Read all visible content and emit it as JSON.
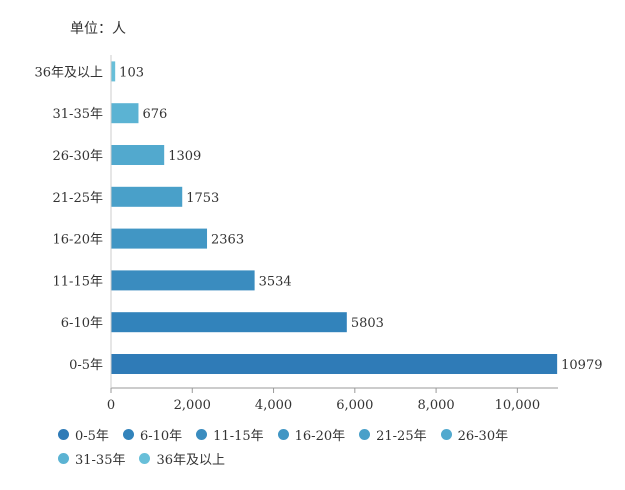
{
  "unit_label": "单位：人",
  "chart_data": {
    "type": "bar",
    "orientation": "horizontal",
    "title": "",
    "xlabel": "",
    "ylabel": "",
    "xlim": [
      0,
      11000
    ],
    "x_ticks": [
      0,
      2000,
      4000,
      6000,
      8000,
      10000
    ],
    "x_tick_labels": [
      "0",
      "2,000",
      "4,000",
      "6,000",
      "8,000",
      "10,000"
    ],
    "categories": [
      "0-5年",
      "6-10年",
      "11-15年",
      "16-20年",
      "21-25年",
      "26-30年",
      "31-35年",
      "36年及以上"
    ],
    "values": [
      10979,
      5803,
      3534,
      2363,
      1753,
      1309,
      676,
      103
    ],
    "value_labels": [
      "10979",
      "5803",
      "3534",
      "2363",
      "1753",
      "1309",
      "676",
      "103"
    ],
    "colors": [
      "#2f7bb7",
      "#3283bb",
      "#3a8cbf",
      "#4196c4",
      "#49a0c9",
      "#52a9ce",
      "#5bb3d3",
      "#68bfd9"
    ],
    "legend": [
      "0-5年",
      "6-10年",
      "11-15年",
      "16-20年",
      "21-25年",
      "26-30年",
      "31-35年",
      "36年及以上"
    ],
    "legend_position": "bottom"
  }
}
